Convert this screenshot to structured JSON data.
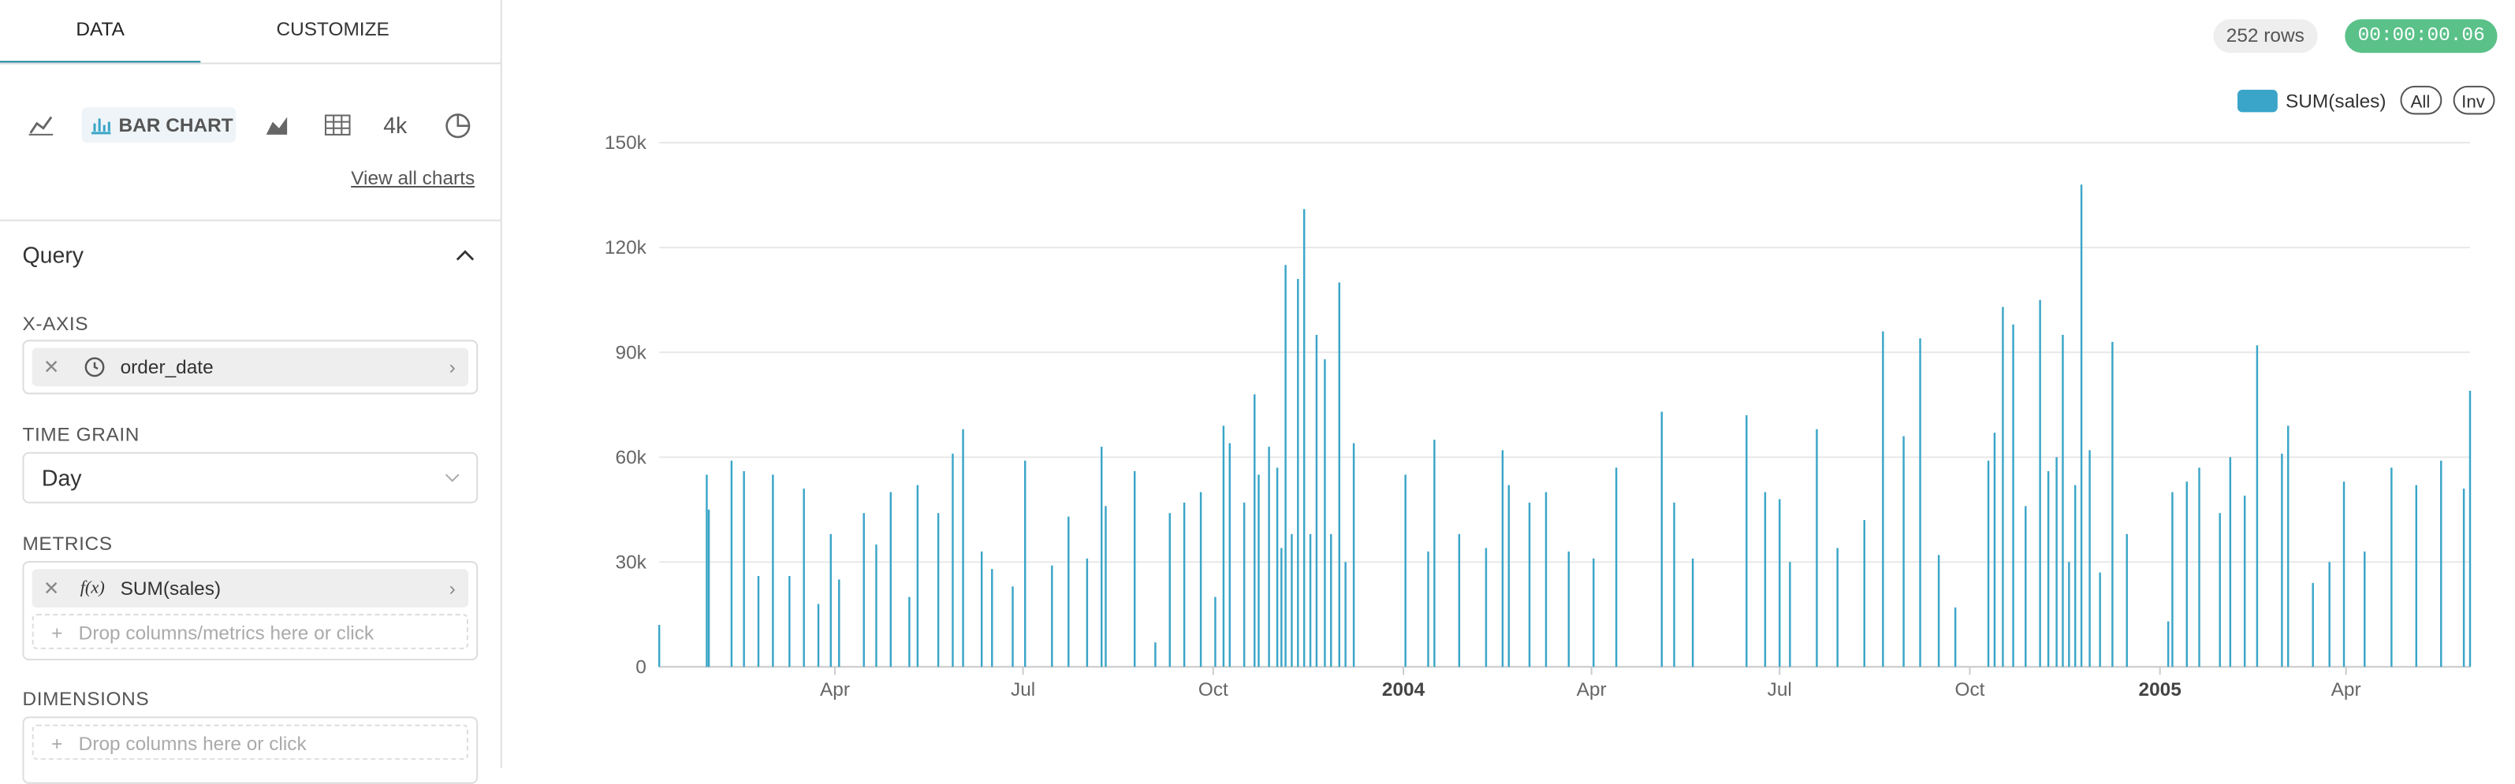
{
  "sidebar": {
    "tabs": [
      "DATA",
      "CUSTOMIZE"
    ],
    "selected_chart": "BAR CHART",
    "chart_shortcut": "4k",
    "view_all": "View all charts",
    "query": {
      "title": "Query",
      "x_axis_label": "X-AXIS",
      "x_axis_value": "order_date",
      "time_grain_label": "TIME GRAIN",
      "time_grain_value": "Day",
      "metrics_label": "METRICS",
      "metric_fn": "f(x)",
      "metric_value": "SUM(sales)",
      "metrics_drop": "Drop columns/metrics here or click",
      "dimensions_label": "DIMENSIONS",
      "dimensions_drop": "Drop columns here or click"
    }
  },
  "header": {
    "rows": "252 rows",
    "timer": "00:00:00.06"
  },
  "chart_data": {
    "type": "bar",
    "legend_controls": [
      "All",
      "Inv"
    ],
    "grid": true,
    "xlim": [
      "2003-01-06",
      "2005-05-31"
    ],
    "xticks": [
      {
        "value": "2003-04-01",
        "label": "Apr"
      },
      {
        "value": "2003-07-01",
        "label": "Jul"
      },
      {
        "value": "2003-10-01",
        "label": "Oct"
      },
      {
        "value": "2004-01-01",
        "label": "2004"
      },
      {
        "value": "2004-04-01",
        "label": "Apr"
      },
      {
        "value": "2004-07-01",
        "label": "Jul"
      },
      {
        "value": "2004-10-01",
        "label": "Oct"
      },
      {
        "value": "2005-01-01",
        "label": "2005"
      },
      {
        "value": "2005-04-01",
        "label": "Apr"
      }
    ],
    "ylim": [
      0,
      150000
    ],
    "yticks": [
      0,
      {
        "value": 30000,
        "label": "30k"
      },
      {
        "value": 60000,
        "label": "60k"
      },
      {
        "value": 90000,
        "label": "90k"
      },
      {
        "value": 120000,
        "label": "120k"
      },
      {
        "value": 150000,
        "label": "150k"
      }
    ],
    "x": [
      "2003-01-06",
      "2003-01-29",
      "2003-01-30",
      "2003-02-10",
      "2003-02-16",
      "2003-02-23",
      "2003-03-02",
      "2003-03-10",
      "2003-03-17",
      "2003-03-24",
      "2003-03-30",
      "2003-04-03",
      "2003-04-15",
      "2003-04-21",
      "2003-04-28",
      "2003-05-07",
      "2003-05-11",
      "2003-05-21",
      "2003-05-28",
      "2003-06-02",
      "2003-06-11",
      "2003-06-16",
      "2003-06-26",
      "2003-07-02",
      "2003-07-15",
      "2003-07-23",
      "2003-08-01",
      "2003-08-08",
      "2003-08-10",
      "2003-08-24",
      "2003-09-03",
      "2003-09-10",
      "2003-09-17",
      "2003-09-25",
      "2003-10-02",
      "2003-10-06",
      "2003-10-09",
      "2003-10-16",
      "2003-10-21",
      "2003-10-23",
      "2003-10-28",
      "2003-11-01",
      "2003-11-03",
      "2003-11-05",
      "2003-11-08",
      "2003-11-11",
      "2003-11-14",
      "2003-11-17",
      "2003-11-20",
      "2003-11-24",
      "2003-11-27",
      "2003-12-01",
      "2003-12-04",
      "2003-12-08",
      "2004-01-02",
      "2004-01-13",
      "2004-01-16",
      "2004-01-28",
      "2004-02-10",
      "2004-02-18",
      "2004-02-21",
      "2004-03-02",
      "2004-03-10",
      "2004-03-21",
      "2004-04-02",
      "2004-04-13",
      "2004-05-05",
      "2004-05-11",
      "2004-05-20",
      "2004-06-15",
      "2004-06-24",
      "2004-07-01",
      "2004-07-06",
      "2004-07-19",
      "2004-07-29",
      "2004-08-11",
      "2004-08-20",
      "2004-08-30",
      "2004-09-07",
      "2004-09-16",
      "2004-09-24",
      "2004-10-10",
      "2004-10-13",
      "2004-10-17",
      "2004-10-22",
      "2004-10-28",
      "2004-11-04",
      "2004-11-08",
      "2004-11-12",
      "2004-11-15",
      "2004-11-18",
      "2004-11-21",
      "2004-11-24",
      "2004-11-28",
      "2004-12-03",
      "2004-12-09",
      "2004-12-16",
      "2005-01-05",
      "2005-01-07",
      "2005-01-14",
      "2005-01-20",
      "2005-01-30",
      "2005-02-04",
      "2005-02-11",
      "2005-02-17",
      "2005-03-01",
      "2005-03-04",
      "2005-03-16",
      "2005-03-24",
      "2005-03-31",
      "2005-04-10",
      "2005-04-23",
      "2005-05-05",
      "2005-05-17",
      "2005-05-28",
      "2005-05-31"
    ],
    "series": [
      {
        "name": "SUM(sales)",
        "color": "#3aa5c8",
        "values": [
          12000,
          55000,
          45000,
          59000,
          56000,
          26000,
          55000,
          26000,
          51000,
          18000,
          38000,
          25000,
          44000,
          35000,
          50000,
          20000,
          52000,
          44000,
          61000,
          68000,
          33000,
          28000,
          23000,
          59000,
          29000,
          43000,
          31000,
          63000,
          46000,
          56000,
          7000,
          44000,
          47000,
          50000,
          20000,
          69000,
          64000,
          47000,
          78000,
          55000,
          63000,
          57000,
          34000,
          115000,
          38000,
          111000,
          131000,
          38000,
          95000,
          88000,
          38000,
          110000,
          30000,
          64000,
          55000,
          33000,
          65000,
          38000,
          34000,
          62000,
          52000,
          47000,
          50000,
          33000,
          31000,
          57000,
          73000,
          47000,
          31000,
          72000,
          50000,
          48000,
          30000,
          68000,
          34000,
          42000,
          96000,
          66000,
          94000,
          32000,
          17000,
          59000,
          67000,
          103000,
          98000,
          46000,
          105000,
          56000,
          60000,
          95000,
          30000,
          52000,
          138000,
          62000,
          27000,
          93000,
          38000,
          13000,
          50000,
          53000,
          57000,
          44000,
          60000,
          49000,
          92000,
          61000,
          69000,
          24000,
          30000,
          53000,
          33000,
          57000,
          52000,
          59000,
          51000,
          79000
        ]
      }
    ]
  }
}
